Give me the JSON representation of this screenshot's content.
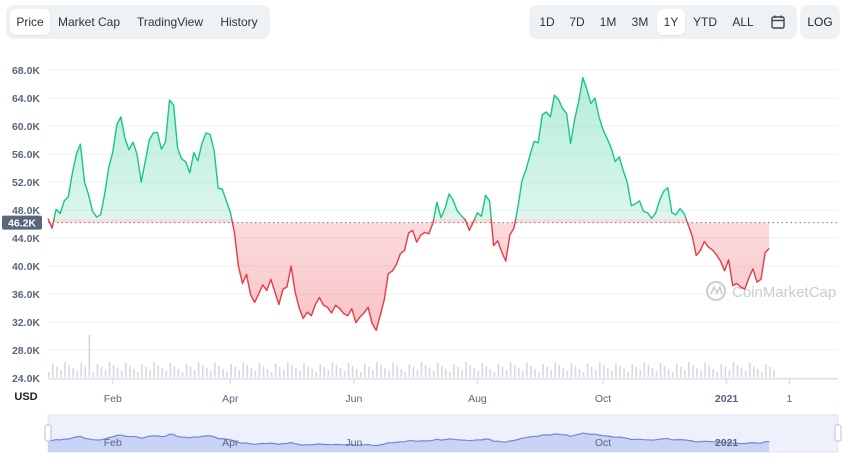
{
  "tabs": [
    {
      "label": "Price",
      "active": true
    },
    {
      "label": "Market Cap",
      "active": false
    },
    {
      "label": "TradingView",
      "active": false
    },
    {
      "label": "History",
      "active": false
    }
  ],
  "ranges": [
    {
      "label": "1D",
      "active": false
    },
    {
      "label": "7D",
      "active": false
    },
    {
      "label": "1M",
      "active": false
    },
    {
      "label": "3M",
      "active": false
    },
    {
      "label": "1Y",
      "active": true
    },
    {
      "label": "YTD",
      "active": false
    },
    {
      "label": "ALL",
      "active": false
    }
  ],
  "calendar_icon": "calendar-icon",
  "log_label": "LOG",
  "watermark": "CoinMarketCap",
  "colors": {
    "up": "#16c784",
    "down": "#ea3943",
    "axis": "#58667e",
    "navigator": "#6f86e0"
  },
  "chart_data": {
    "type": "area",
    "currency_label": "USD",
    "reference_label": "46.2K",
    "reference_value": 46200,
    "ylim": [
      24000,
      70000
    ],
    "yticks": [
      {
        "value": 24000,
        "label": "24.0K"
      },
      {
        "value": 28000,
        "label": "28.0K"
      },
      {
        "value": 32000,
        "label": "32.0K"
      },
      {
        "value": 36000,
        "label": "36.0K"
      },
      {
        "value": 40000,
        "label": "40.0K"
      },
      {
        "value": 44000,
        "label": "44.0K"
      },
      {
        "value": 48000,
        "label": "48.0K"
      },
      {
        "value": 52000,
        "label": "52.0K"
      },
      {
        "value": 56000,
        "label": "56.0K"
      },
      {
        "value": 60000,
        "label": "60.0K"
      },
      {
        "value": 64000,
        "label": "64.0K"
      },
      {
        "value": 68000,
        "label": "68.0K"
      }
    ],
    "xlim": [
      0,
      390
    ],
    "xticks": [
      {
        "day": 32,
        "label": "Feb",
        "bold": false
      },
      {
        "day": 90,
        "label": "Apr",
        "bold": false
      },
      {
        "day": 151,
        "label": "Jun",
        "bold": false
      },
      {
        "day": 212,
        "label": "Aug",
        "bold": false
      },
      {
        "day": 274,
        "label": "Oct",
        "bold": false
      },
      {
        "day": 335,
        "label": "2021",
        "bold": true
      },
      {
        "day": 366,
        "label": "1",
        "bold": false
      }
    ],
    "navigator_xticks": [
      {
        "day": 32,
        "label": "Feb",
        "bold": false
      },
      {
        "day": 90,
        "label": "Apr",
        "bold": false
      },
      {
        "day": 151,
        "label": "Jun",
        "bold": false
      },
      {
        "day": 274,
        "label": "Oct",
        "bold": false
      },
      {
        "day": 335,
        "label": "2021",
        "bold": true
      }
    ],
    "series": [
      {
        "values": [
          [
            0,
            46800
          ],
          [
            2,
            45400
          ],
          [
            4,
            48100
          ],
          [
            6,
            47500
          ],
          [
            8,
            49300
          ],
          [
            10,
            49900
          ],
          [
            12,
            53200
          ],
          [
            14,
            56000
          ],
          [
            16,
            57400
          ],
          [
            18,
            52000
          ],
          [
            20,
            50200
          ],
          [
            22,
            47800
          ],
          [
            24,
            47000
          ],
          [
            26,
            47300
          ],
          [
            28,
            50300
          ],
          [
            30,
            54100
          ],
          [
            32,
            56300
          ],
          [
            34,
            60200
          ],
          [
            36,
            61300
          ],
          [
            38,
            58200
          ],
          [
            40,
            56600
          ],
          [
            42,
            57700
          ],
          [
            44,
            55900
          ],
          [
            46,
            52000
          ],
          [
            48,
            54900
          ],
          [
            50,
            58000
          ],
          [
            52,
            59000
          ],
          [
            54,
            59100
          ],
          [
            56,
            56700
          ],
          [
            58,
            57700
          ],
          [
            60,
            63700
          ],
          [
            62,
            63000
          ],
          [
            64,
            56800
          ],
          [
            66,
            55300
          ],
          [
            68,
            54900
          ],
          [
            70,
            53300
          ],
          [
            72,
            56200
          ],
          [
            74,
            55000
          ],
          [
            76,
            57500
          ],
          [
            78,
            59000
          ],
          [
            80,
            58800
          ],
          [
            82,
            56500
          ],
          [
            84,
            51100
          ],
          [
            86,
            51000
          ],
          [
            88,
            49300
          ],
          [
            90,
            47700
          ],
          [
            92,
            44800
          ],
          [
            94,
            40000
          ],
          [
            96,
            37500
          ],
          [
            98,
            38800
          ],
          [
            100,
            35900
          ],
          [
            102,
            34800
          ],
          [
            104,
            36000
          ],
          [
            106,
            37300
          ],
          [
            108,
            36500
          ],
          [
            110,
            38100
          ],
          [
            112,
            36300
          ],
          [
            114,
            34500
          ],
          [
            116,
            36700
          ],
          [
            118,
            37000
          ],
          [
            120,
            40000
          ],
          [
            122,
            36300
          ],
          [
            124,
            34000
          ],
          [
            126,
            32500
          ],
          [
            128,
            33400
          ],
          [
            130,
            32900
          ],
          [
            132,
            34500
          ],
          [
            134,
            35500
          ],
          [
            136,
            34400
          ],
          [
            138,
            34100
          ],
          [
            140,
            33300
          ],
          [
            142,
            34400
          ],
          [
            144,
            33900
          ],
          [
            146,
            33200
          ],
          [
            148,
            32900
          ],
          [
            150,
            33900
          ],
          [
            152,
            31900
          ],
          [
            154,
            32700
          ],
          [
            156,
            33300
          ],
          [
            158,
            34100
          ],
          [
            160,
            31800
          ],
          [
            162,
            30800
          ],
          [
            164,
            32900
          ],
          [
            166,
            35200
          ],
          [
            168,
            38900
          ],
          [
            170,
            39300
          ],
          [
            172,
            40200
          ],
          [
            174,
            41800
          ],
          [
            176,
            42200
          ],
          [
            178,
            44700
          ],
          [
            180,
            45100
          ],
          [
            182,
            43400
          ],
          [
            184,
            44400
          ],
          [
            186,
            44800
          ],
          [
            188,
            44600
          ],
          [
            190,
            46100
          ],
          [
            192,
            49100
          ],
          [
            194,
            46900
          ],
          [
            196,
            48200
          ],
          [
            198,
            50300
          ],
          [
            200,
            49400
          ],
          [
            202,
            47900
          ],
          [
            204,
            47200
          ],
          [
            206,
            46600
          ],
          [
            208,
            45100
          ],
          [
            210,
            46300
          ],
          [
            212,
            47600
          ],
          [
            214,
            47100
          ],
          [
            216,
            50100
          ],
          [
            218,
            49300
          ],
          [
            220,
            42900
          ],
          [
            222,
            43600
          ],
          [
            224,
            42000
          ],
          [
            226,
            40700
          ],
          [
            228,
            44400
          ],
          [
            230,
            45400
          ],
          [
            232,
            48400
          ],
          [
            234,
            52200
          ],
          [
            236,
            53800
          ],
          [
            238,
            55900
          ],
          [
            240,
            57800
          ],
          [
            242,
            57600
          ],
          [
            244,
            61600
          ],
          [
            246,
            62000
          ],
          [
            248,
            61300
          ],
          [
            250,
            64400
          ],
          [
            252,
            63800
          ],
          [
            254,
            62500
          ],
          [
            256,
            61800
          ],
          [
            258,
            57500
          ],
          [
            260,
            61000
          ],
          [
            262,
            63500
          ],
          [
            264,
            66900
          ],
          [
            266,
            65300
          ],
          [
            268,
            63200
          ],
          [
            270,
            64000
          ],
          [
            272,
            61300
          ],
          [
            274,
            59500
          ],
          [
            276,
            58200
          ],
          [
            278,
            56900
          ],
          [
            280,
            54900
          ],
          [
            282,
            55600
          ],
          [
            284,
            53600
          ],
          [
            286,
            51900
          ],
          [
            288,
            48600
          ],
          [
            290,
            48900
          ],
          [
            292,
            49300
          ],
          [
            294,
            47800
          ],
          [
            296,
            47600
          ],
          [
            298,
            46800
          ],
          [
            300,
            47600
          ],
          [
            302,
            49400
          ],
          [
            304,
            50700
          ],
          [
            306,
            51200
          ],
          [
            308,
            47600
          ],
          [
            310,
            47300
          ],
          [
            312,
            48200
          ],
          [
            314,
            47500
          ],
          [
            316,
            45900
          ],
          [
            318,
            44300
          ],
          [
            320,
            41500
          ],
          [
            322,
            42200
          ],
          [
            324,
            43500
          ],
          [
            326,
            42700
          ],
          [
            328,
            42300
          ],
          [
            330,
            41600
          ],
          [
            332,
            40700
          ],
          [
            334,
            39300
          ],
          [
            336,
            40900
          ],
          [
            338,
            37200
          ],
          [
            340,
            37500
          ],
          [
            342,
            37000
          ],
          [
            344,
            36700
          ],
          [
            346,
            38300
          ],
          [
            348,
            39600
          ],
          [
            350,
            37700
          ],
          [
            352,
            38100
          ],
          [
            354,
            41900
          ],
          [
            356,
            42500
          ]
        ]
      }
    ],
    "volume_spike_day": 20
  }
}
